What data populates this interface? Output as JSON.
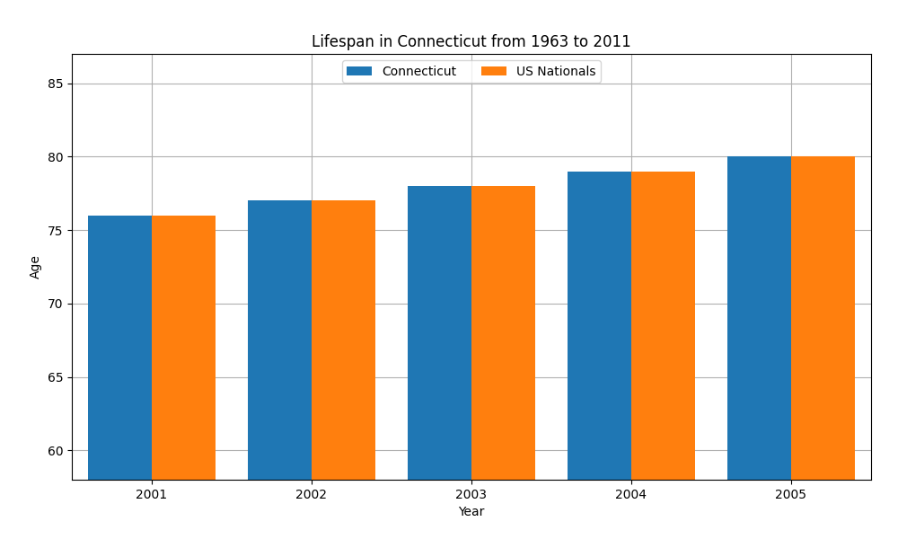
{
  "chart_data": {
    "type": "bar",
    "title": "Lifespan in Connecticut from 1963 to 2011",
    "x_label": "Year",
    "y_label": "Age",
    "categories": [
      "2001",
      "2002",
      "2003",
      "2004",
      "2005"
    ],
    "series": [
      {
        "name": "Connecticut",
        "values": [
          76,
          77,
          78,
          79,
          80
        ]
      },
      {
        "name": "US Nationals",
        "values": [
          76,
          77,
          78,
          79,
          80
        ]
      }
    ],
    "ylim": [
      58,
      87
    ],
    "yticks": [
      60,
      65,
      70,
      75,
      80,
      85
    ],
    "grid": true,
    "legend": "upper center"
  }
}
